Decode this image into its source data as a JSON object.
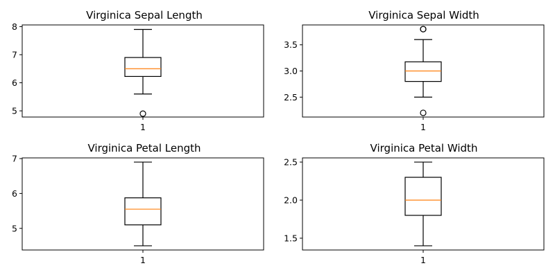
{
  "chart_data": [
    {
      "type": "box",
      "title": "Virginica Sepal Length",
      "categories": [
        "1"
      ],
      "ylim": [
        4.78,
        8.06
      ],
      "yticks": [
        5,
        6,
        7,
        8
      ],
      "ytick_labels": [
        "5",
        "6",
        "7",
        "8"
      ],
      "box": {
        "whisker_low": 5.6,
        "q1": 6.225,
        "median": 6.5,
        "q3": 6.9,
        "whisker_high": 7.9
      },
      "outliers": [
        4.9
      ]
    },
    {
      "type": "box",
      "title": "Virginica Sepal Width",
      "categories": [
        "1"
      ],
      "ylim": [
        2.12,
        3.88
      ],
      "yticks": [
        2.5,
        3.0,
        3.5
      ],
      "ytick_labels": [
        "2.5",
        "3.0",
        "3.5"
      ],
      "box": {
        "whisker_low": 2.5,
        "q1": 2.8,
        "median": 3.0,
        "q3": 3.175,
        "whisker_high": 3.6
      },
      "outliers": [
        3.8,
        3.8,
        2.2
      ]
    },
    {
      "type": "box",
      "title": "Virginica Petal Length",
      "categories": [
        "1"
      ],
      "ylim": [
        4.38,
        7.02
      ],
      "yticks": [
        5,
        6,
        7
      ],
      "ytick_labels": [
        "5",
        "6",
        "7"
      ],
      "box": {
        "whisker_low": 4.5,
        "q1": 5.1,
        "median": 5.55,
        "q3": 5.875,
        "whisker_high": 6.9
      },
      "outliers": []
    },
    {
      "type": "box",
      "title": "Virginica Petal Width",
      "categories": [
        "1"
      ],
      "ylim": [
        1.345,
        2.555
      ],
      "yticks": [
        1.5,
        2.0,
        2.5
      ],
      "ytick_labels": [
        "1.5",
        "2.0",
        "2.5"
      ],
      "box": {
        "whisker_low": 1.4,
        "q1": 1.8,
        "median": 2.0,
        "q3": 2.3,
        "whisker_high": 2.5
      },
      "outliers": []
    }
  ],
  "colors": {
    "median": "#ff7f0e",
    "box": "#000000",
    "background": "#ffffff"
  }
}
